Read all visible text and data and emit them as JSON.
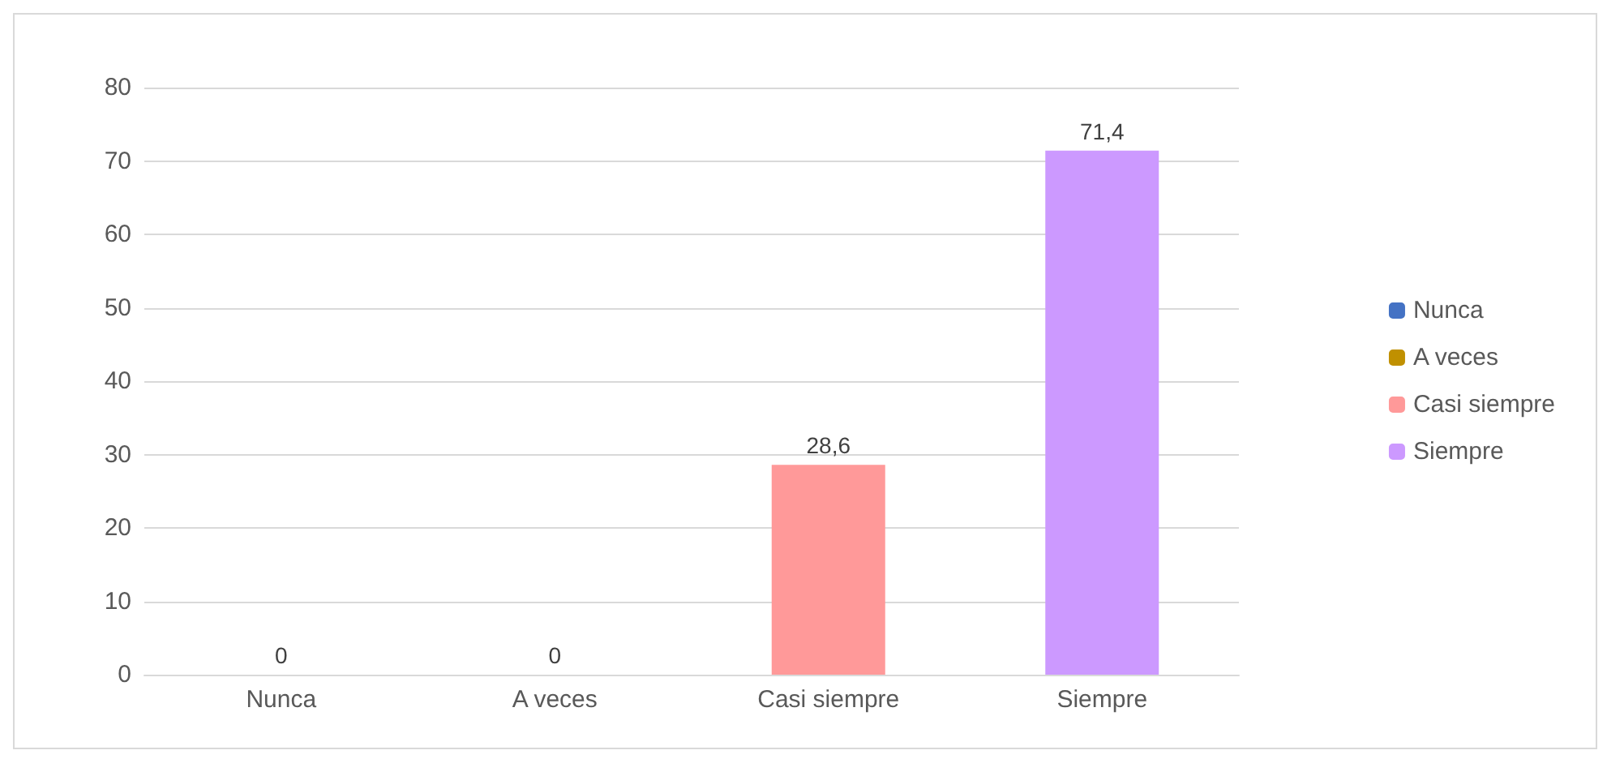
{
  "chart_data": {
    "type": "bar",
    "categories": [
      "Nunca",
      "A veces",
      "Casi siempre",
      "Siempre"
    ],
    "series": [
      {
        "name": "Nunca",
        "color": "#4472c4",
        "values": [
          0,
          null,
          null,
          null
        ],
        "value_labels": [
          "0",
          null,
          null,
          null
        ]
      },
      {
        "name": "A veces",
        "color": "#c09000",
        "values": [
          null,
          0,
          null,
          null
        ],
        "value_labels": [
          null,
          "0",
          null,
          null
        ]
      },
      {
        "name": "Casi siempre",
        "color": "#ff9999",
        "values": [
          null,
          null,
          28.6,
          null
        ],
        "value_labels": [
          null,
          null,
          "28,6",
          null
        ]
      },
      {
        "name": "Siempre",
        "color": "#cc99ff",
        "values": [
          null,
          null,
          null,
          71.4
        ],
        "value_labels": [
          null,
          null,
          null,
          "71,4"
        ]
      }
    ],
    "ylim": [
      0,
      80
    ],
    "yticks": [
      0,
      10,
      20,
      30,
      40,
      50,
      60,
      70,
      80
    ],
    "grid": "y",
    "legend": "right"
  }
}
